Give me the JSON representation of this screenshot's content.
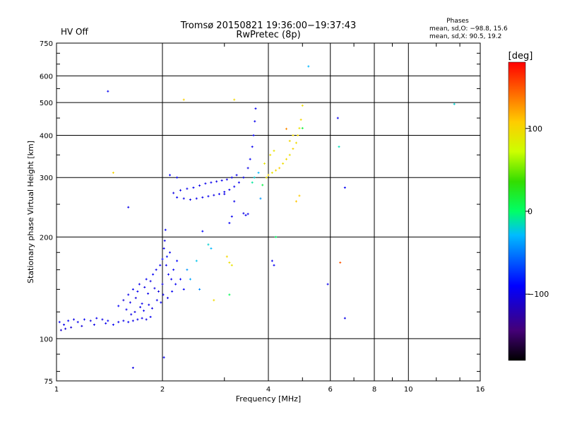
{
  "header": {
    "status": "HV Off",
    "status_color": "#cc0000",
    "title_line1": "Tromsø 20150821 19:36:00−19:37:43",
    "title_line2": "RwPretec (8p)"
  },
  "stats": {
    "heading": "Phases",
    "line_o": "mean, sd,O: −98.8, 15.6",
    "line_x": "mean, sd,X:  90.5, 19.2"
  },
  "colorbar": {
    "unit_label": "[deg]",
    "ticks": [
      "100",
      "0",
      "−100"
    ],
    "tick_values": [
      100,
      0,
      -100
    ],
    "range": [
      -180,
      180
    ]
  },
  "chart_data": {
    "type": "scatter",
    "title": "Tromsø 20150821 19:36:00−19:37:43",
    "subtitle": "RwPretec (8p)",
    "xlabel": "Frequency [MHz]",
    "ylabel": "Stationary phase Virtual Height [km]",
    "x_scale": "log",
    "y_scale": "log",
    "xlim": [
      1,
      16
    ],
    "ylim": [
      75,
      750
    ],
    "x_ticks": [
      1,
      2,
      4,
      6,
      8,
      10,
      16
    ],
    "x_tick_labels": [
      "1",
      "2",
      "4",
      "6",
      "8",
      "10",
      "16"
    ],
    "y_ticks": [
      75,
      100,
      200,
      300,
      400,
      500,
      600,
      750
    ],
    "y_tick_labels": [
      "75",
      "100",
      "200",
      "300",
      "400",
      "500",
      "600",
      "750"
    ],
    "grid": true,
    "color_by": "phase (deg)",
    "series": [
      {
        "points": [
          [
            1.02,
            112,
            -95
          ],
          [
            1.05,
            110,
            -98
          ],
          [
            1.08,
            113,
            -92
          ],
          [
            1.12,
            114,
            -100
          ],
          [
            1.15,
            112,
            -96
          ],
          [
            1.2,
            114,
            -94
          ],
          [
            1.25,
            113,
            -102
          ],
          [
            1.3,
            115,
            -97
          ],
          [
            1.35,
            114,
            -99
          ],
          [
            1.4,
            113,
            -93
          ],
          [
            1.03,
            106,
            -110
          ],
          [
            1.06,
            107,
            -105
          ],
          [
            1.1,
            108,
            -108
          ],
          [
            1.18,
            109,
            -104
          ],
          [
            1.28,
            110,
            -100
          ],
          [
            1.38,
            111,
            -98
          ],
          [
            1.45,
            110,
            -95
          ],
          [
            1.5,
            112,
            -97
          ],
          [
            1.55,
            113,
            -99
          ],
          [
            1.6,
            112,
            -94
          ],
          [
            1.65,
            113,
            -100
          ],
          [
            1.7,
            114,
            -96
          ],
          [
            1.75,
            115,
            -98
          ],
          [
            1.8,
            114,
            -101
          ],
          [
            1.85,
            116,
            -95
          ],
          [
            1.5,
            125,
            -92
          ],
          [
            1.55,
            130,
            -105
          ],
          [
            1.6,
            135,
            -98
          ],
          [
            1.62,
            128,
            -100
          ],
          [
            1.65,
            140,
            -96
          ],
          [
            1.68,
            132,
            -103
          ],
          [
            1.7,
            138,
            -94
          ],
          [
            1.72,
            145,
            -99
          ],
          [
            1.75,
            127,
            -97
          ],
          [
            1.78,
            142,
            -101
          ],
          [
            1.8,
            150,
            -95
          ],
          [
            1.82,
            136,
            -98
          ],
          [
            1.85,
            148,
            -102
          ],
          [
            1.88,
            155,
            -93
          ],
          [
            1.9,
            141,
            -100
          ],
          [
            1.92,
            160,
            -97
          ],
          [
            1.95,
            138,
            -104
          ],
          [
            1.97,
            165,
            -96
          ],
          [
            2.0,
            172,
            -92
          ],
          [
            2.0,
            145,
            -99
          ],
          [
            2.02,
            185,
            -95
          ],
          [
            2.03,
            195,
            -100
          ],
          [
            2.04,
            210,
            -90
          ],
          [
            2.05,
            165,
            -98
          ],
          [
            2.06,
            175,
            -85
          ],
          [
            2.08,
            155,
            -94
          ],
          [
            2.1,
            180,
            -97
          ],
          [
            2.12,
            150,
            -96
          ],
          [
            2.15,
            160,
            -93
          ],
          [
            2.18,
            145,
            -95
          ],
          [
            2.2,
            170,
            -90
          ],
          [
            2.25,
            150,
            -88
          ],
          [
            2.3,
            140,
            -92
          ],
          [
            1.58,
            122,
            -96
          ],
          [
            1.63,
            118,
            -99
          ],
          [
            1.67,
            120,
            -101
          ],
          [
            1.73,
            124,
            -97
          ],
          [
            1.77,
            121,
            -95
          ],
          [
            1.83,
            126,
            -98
          ],
          [
            1.87,
            123,
            -100
          ],
          [
            1.93,
            130,
            -96
          ],
          [
            1.98,
            128,
            -94
          ],
          [
            2.01,
            135,
            -97
          ],
          [
            2.07,
            132,
            -99
          ],
          [
            2.13,
            138,
            -95
          ],
          [
            2.2,
            262,
            -95
          ],
          [
            2.3,
            260,
            -98
          ],
          [
            2.4,
            258,
            -100
          ],
          [
            2.5,
            260,
            -97
          ],
          [
            2.6,
            262,
            -99
          ],
          [
            2.7,
            264,
            -96
          ],
          [
            2.8,
            266,
            -101
          ],
          [
            2.9,
            268,
            -94
          ],
          [
            3.0,
            272,
            -98
          ],
          [
            3.1,
            276,
            -100
          ],
          [
            3.2,
            282,
            -96
          ],
          [
            3.3,
            290,
            -97
          ],
          [
            3.4,
            300,
            -95
          ],
          [
            3.5,
            320,
            -99
          ],
          [
            3.55,
            340,
            -94
          ],
          [
            3.6,
            370,
            -96
          ],
          [
            3.63,
            400,
            -92
          ],
          [
            3.66,
            440,
            -97
          ],
          [
            3.68,
            480,
            -95
          ],
          [
            2.15,
            270,
            -102
          ],
          [
            2.25,
            275,
            -99
          ],
          [
            2.35,
            278,
            -97
          ],
          [
            2.45,
            280,
            -95
          ],
          [
            2.55,
            284,
            -101
          ],
          [
            2.65,
            288,
            -98
          ],
          [
            2.75,
            290,
            -96
          ],
          [
            2.85,
            292,
            -100
          ],
          [
            2.95,
            294,
            -97
          ],
          [
            3.05,
            296,
            -99
          ],
          [
            3.15,
            300,
            -95
          ],
          [
            3.25,
            305,
            -97
          ],
          [
            2.1,
            305,
            -90
          ],
          [
            2.2,
            300,
            -93
          ],
          [
            3.0,
            268,
            -100
          ],
          [
            3.2,
            255,
            -98
          ],
          [
            3.4,
            235,
            -100
          ],
          [
            3.45,
            232,
            -96
          ],
          [
            3.5,
            234,
            -99
          ],
          [
            2.6,
            208,
            -88
          ],
          [
            3.1,
            220,
            -94
          ],
          [
            3.15,
            230,
            -96
          ],
          [
            1.4,
            540,
            -95
          ],
          [
            1.6,
            245,
            -98
          ],
          [
            1.65,
            82,
            -100
          ],
          [
            2.02,
            88,
            -94
          ],
          [
            4.1,
            170,
            -97
          ],
          [
            4.15,
            165,
            -95
          ],
          [
            5.9,
            145,
            -98
          ],
          [
            6.3,
            450,
            -96
          ],
          [
            6.6,
            280,
            -94
          ],
          [
            6.6,
            115,
            -99
          ]
        ]
      },
      {
        "points": [
          [
            2.7,
            190,
            -20
          ],
          [
            2.75,
            185,
            -30
          ],
          [
            2.35,
            160,
            -40
          ],
          [
            2.4,
            150,
            -35
          ],
          [
            2.5,
            170,
            -25
          ],
          [
            2.55,
            140,
            -45
          ],
          [
            3.6,
            290,
            -10
          ],
          [
            3.65,
            300,
            -20
          ],
          [
            3.75,
            310,
            -30
          ],
          [
            3.8,
            260,
            -40
          ],
          [
            3.1,
            135,
            5
          ],
          [
            3.85,
            285,
            10
          ],
          [
            5.0,
            420,
            15
          ],
          [
            4.2,
            200,
            0
          ],
          [
            6.35,
            370,
            -15
          ],
          [
            5.2,
            640,
            -30
          ],
          [
            13.5,
            495,
            -20
          ]
        ]
      },
      {
        "points": [
          [
            3.95,
            300,
            95
          ],
          [
            4.0,
            305,
            100
          ],
          [
            4.1,
            310,
            92
          ],
          [
            4.2,
            315,
            98
          ],
          [
            4.3,
            320,
            105
          ],
          [
            4.4,
            330,
            96
          ],
          [
            4.5,
            340,
            100
          ],
          [
            4.6,
            350,
            94
          ],
          [
            4.7,
            365,
            102
          ],
          [
            4.8,
            380,
            97
          ],
          [
            4.85,
            400,
            99
          ],
          [
            4.9,
            420,
            93
          ],
          [
            4.95,
            445,
            101
          ],
          [
            5.0,
            490,
            96
          ],
          [
            3.9,
            330,
            90
          ],
          [
            4.05,
            350,
            95
          ],
          [
            4.15,
            360,
            92
          ],
          [
            4.6,
            385,
            100
          ],
          [
            4.7,
            400,
            98
          ],
          [
            3.05,
            175,
            100
          ],
          [
            3.1,
            168,
            95
          ],
          [
            3.15,
            165,
            92
          ],
          [
            2.8,
            130,
            98
          ],
          [
            2.3,
            510,
            105
          ],
          [
            3.2,
            510,
            100
          ],
          [
            1.45,
            310,
            102
          ],
          [
            4.8,
            255,
            110
          ],
          [
            4.9,
            265,
            108
          ],
          [
            4.5,
            418,
            130
          ],
          [
            6.4,
            168,
            150
          ]
        ]
      }
    ]
  }
}
